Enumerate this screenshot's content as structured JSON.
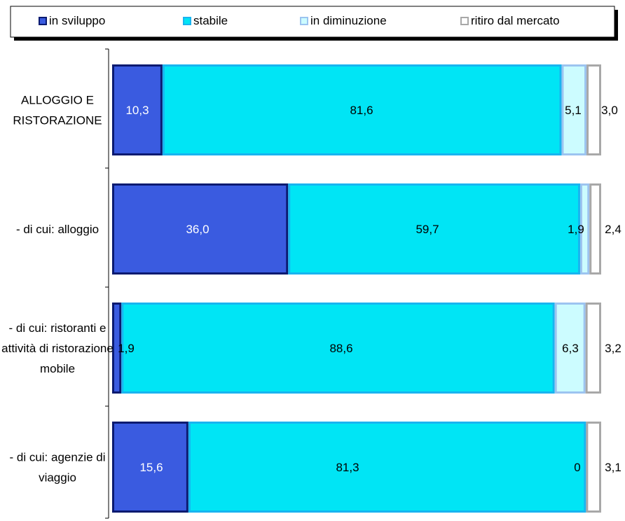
{
  "chart_data": {
    "type": "bar",
    "orientation": "horizontal",
    "stacked": "percent",
    "categories": [
      [
        "ALLOGGIO E",
        "RISTORAZIONE"
      ],
      [
        "- di cui: alloggio"
      ],
      [
        "- di cui: ristoranti e",
        "attività di ristorazione",
        "mobile"
      ],
      [
        "- di cui: agenzie di",
        "viaggio"
      ]
    ],
    "series": [
      {
        "name": "in sviluppo",
        "color": "#3A5BE0",
        "border": "#0A1A70",
        "values": [
          10.3,
          36.0,
          1.9,
          15.6
        ],
        "labels": [
          "10,3",
          "36,0",
          "1,9",
          "15,6"
        ]
      },
      {
        "name": "stabile",
        "color": "#00E5F5",
        "border": "#19B4F0",
        "values": [
          81.6,
          59.7,
          88.6,
          81.3
        ],
        "labels": [
          "81,6",
          "59,7",
          "88,6",
          "81,3"
        ]
      },
      {
        "name": "in diminuzione",
        "color": "#CCFCFF",
        "border": "#9CC4F0",
        "values": [
          5.1,
          1.9,
          6.3,
          0
        ],
        "labels": [
          "5,1",
          "1,9",
          "6,3",
          "0"
        ]
      },
      {
        "name": "ritiro dal mercato",
        "color": "#FFFFFF",
        "border": "#A8A8A8",
        "values": [
          3.0,
          2.4,
          3.2,
          3.1
        ],
        "labels": [
          "3,0",
          "2,4",
          "3,2",
          "3,1"
        ]
      }
    ],
    "xlim": [
      0,
      100
    ],
    "legend_position": "top",
    "grid": false
  }
}
